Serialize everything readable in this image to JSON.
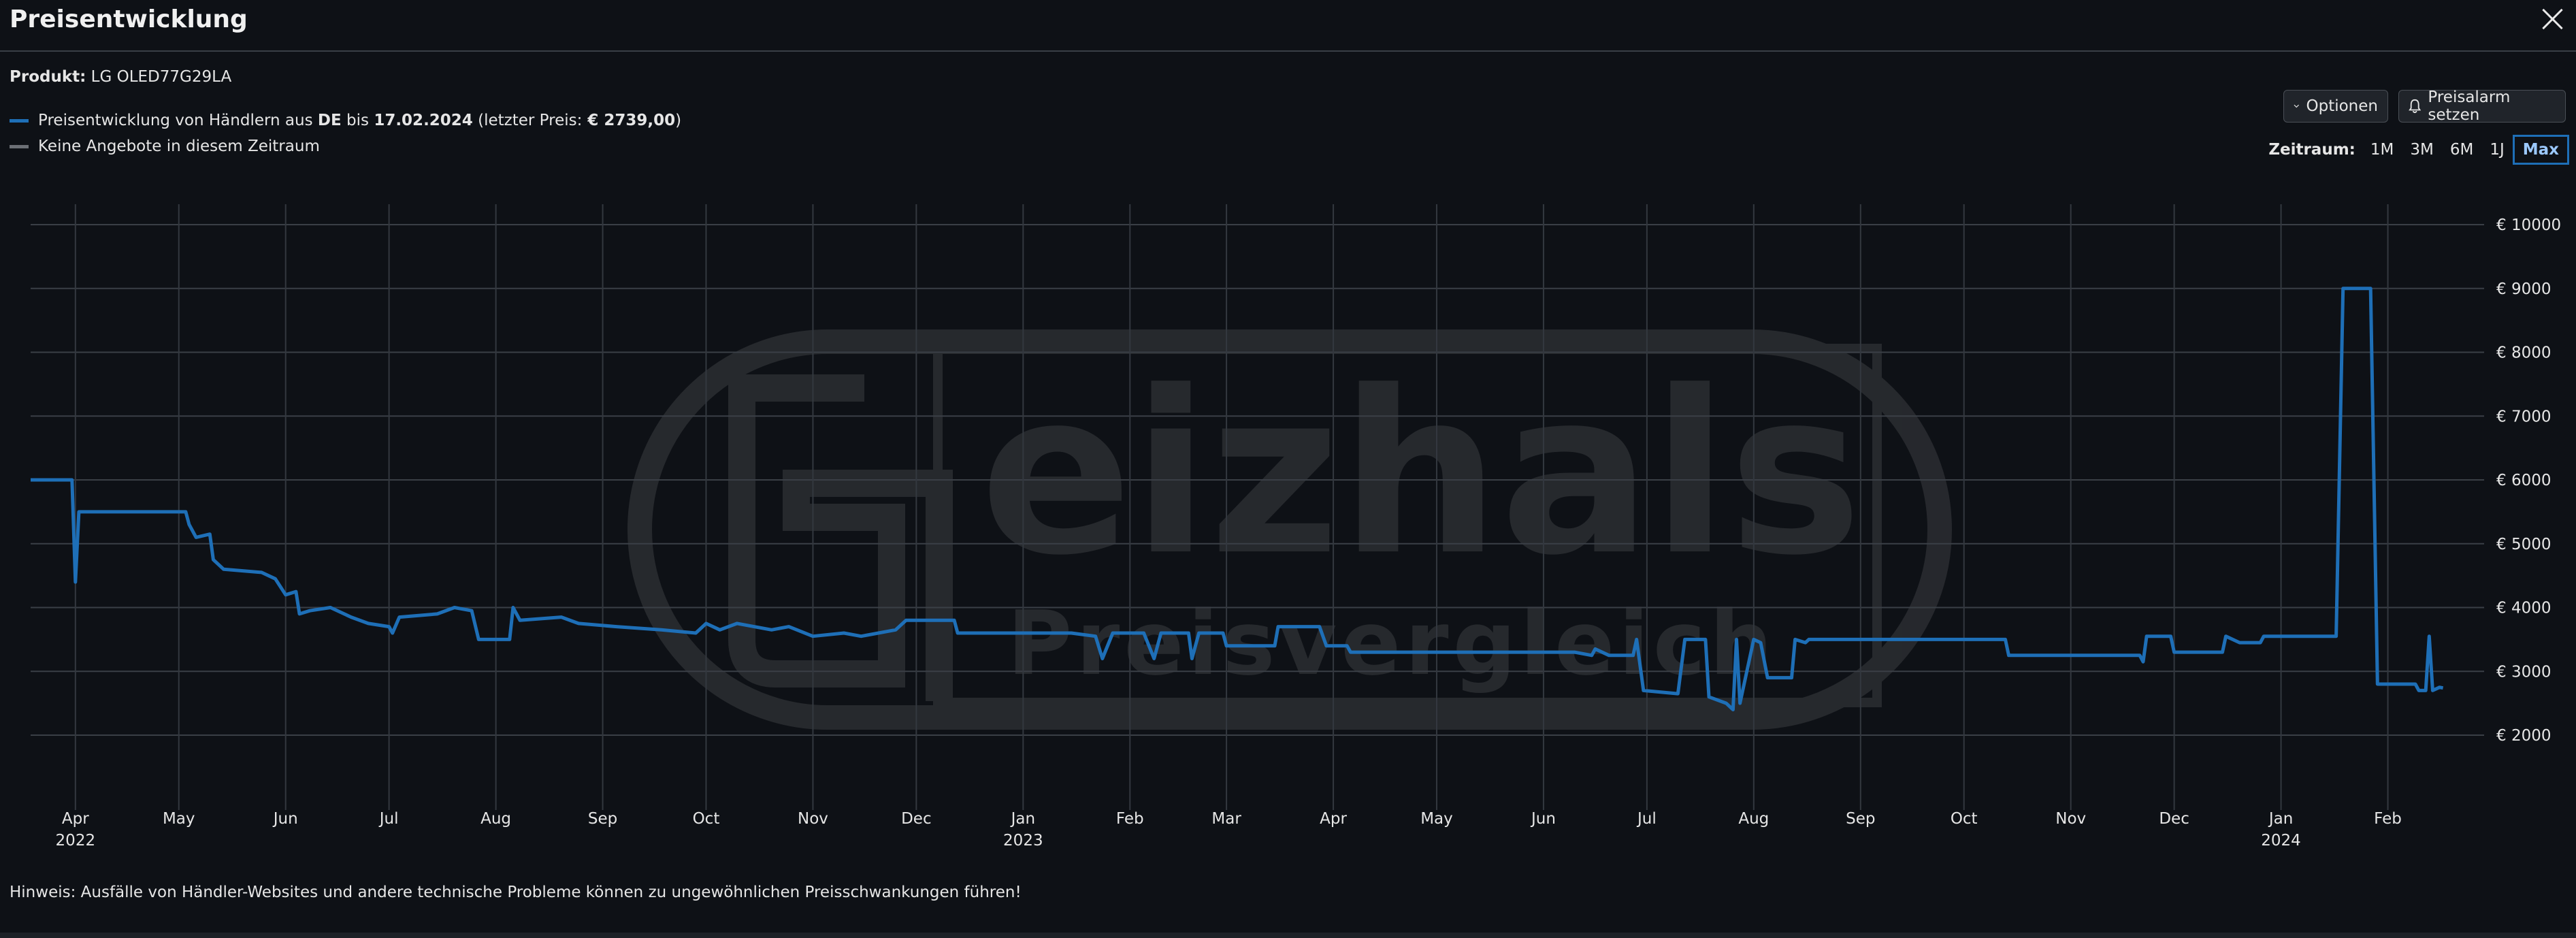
{
  "header": {
    "title": "Preisentwicklung"
  },
  "product": {
    "label": "Produkt:",
    "name": "LG OLED77G29LA"
  },
  "legend": {
    "series_text_1": "Preisentwicklung von Händlern aus",
    "series_country": "DE",
    "series_text_2": "bis",
    "series_date": "17.02.2024",
    "series_text_3": "(letzter Preis:",
    "series_price": "€ 2739,00",
    "series_text_4": ")",
    "no_offers": "Keine Angebote in diesem Zeitraum",
    "series_color": "#1e6fb7",
    "no_offers_color": "#6b6f75"
  },
  "toolbar": {
    "options_label": "Optionen",
    "alarm_label": "Preisalarm setzen"
  },
  "zeitraum": {
    "label": "Zeitraum:",
    "options": [
      "1M",
      "3M",
      "6M",
      "1J",
      "Max"
    ],
    "active": "Max"
  },
  "watermark": {
    "word": "eizhals",
    "sub": "Preisvergleich"
  },
  "hint": "Hinweis: Ausfälle von Händler-Websites und andere technische Probleme können zu ungewöhnlichen Preisschwankungen führen!",
  "chart_data": {
    "type": "line",
    "y_ticks": [
      "€ 10000",
      "€ 9000",
      "€ 8000",
      "€ 7000",
      "€ 6000",
      "€ 5000",
      "€ 4000",
      "€ 3000",
      "€ 2000"
    ],
    "y_values": [
      10000,
      9000,
      8000,
      7000,
      6000,
      5000,
      4000,
      3000,
      2000
    ],
    "ylim": [
      1100,
      10300
    ],
    "x_range": [
      "2022-03-19",
      "2024-02-24"
    ],
    "x_ticks": [
      {
        "label": "Apr",
        "year": "2022",
        "date": "2022-04-01"
      },
      {
        "label": "May",
        "year": "",
        "date": "2022-05-01"
      },
      {
        "label": "Jun",
        "year": "",
        "date": "2022-06-01"
      },
      {
        "label": "Jul",
        "year": "",
        "date": "2022-07-01"
      },
      {
        "label": "Aug",
        "year": "",
        "date": "2022-08-01"
      },
      {
        "label": "Sep",
        "year": "",
        "date": "2022-09-01"
      },
      {
        "label": "Oct",
        "year": "",
        "date": "2022-10-01"
      },
      {
        "label": "Nov",
        "year": "",
        "date": "2022-11-01"
      },
      {
        "label": "Dec",
        "year": "",
        "date": "2022-12-01"
      },
      {
        "label": "Jan",
        "year": "2023",
        "date": "2023-01-01"
      },
      {
        "label": "Feb",
        "year": "",
        "date": "2023-02-01"
      },
      {
        "label": "Mar",
        "year": "",
        "date": "2023-03-01"
      },
      {
        "label": "Apr",
        "year": "",
        "date": "2023-04-01"
      },
      {
        "label": "May",
        "year": "",
        "date": "2023-05-01"
      },
      {
        "label": "Jun",
        "year": "",
        "date": "2023-06-01"
      },
      {
        "label": "Jul",
        "year": "",
        "date": "2023-07-01"
      },
      {
        "label": "Aug",
        "year": "",
        "date": "2023-08-01"
      },
      {
        "label": "Sep",
        "year": "",
        "date": "2023-09-01"
      },
      {
        "label": "Oct",
        "year": "",
        "date": "2023-10-01"
      },
      {
        "label": "Nov",
        "year": "",
        "date": "2023-11-01"
      },
      {
        "label": "Dec",
        "year": "",
        "date": "2023-12-01"
      },
      {
        "label": "Jan",
        "year": "2024",
        "date": "2024-01-01"
      },
      {
        "label": "Feb",
        "year": "",
        "date": "2024-02-01"
      }
    ],
    "grid": true,
    "series": [
      {
        "points": [
          [
            "2022-03-19",
            6000
          ],
          [
            "2022-03-31",
            6000
          ],
          [
            "2022-04-01",
            4400
          ],
          [
            "2022-04-02",
            5500
          ],
          [
            "2022-05-03",
            5500
          ],
          [
            "2022-05-04",
            5300
          ],
          [
            "2022-05-06",
            5100
          ],
          [
            "2022-05-10",
            5150
          ],
          [
            "2022-05-11",
            4750
          ],
          [
            "2022-05-14",
            4600
          ],
          [
            "2022-05-25",
            4550
          ],
          [
            "2022-05-29",
            4450
          ],
          [
            "2022-06-01",
            4200
          ],
          [
            "2022-06-04",
            4250
          ],
          [
            "2022-06-05",
            3900
          ],
          [
            "2022-06-08",
            3950
          ],
          [
            "2022-06-14",
            4000
          ],
          [
            "2022-06-20",
            3850
          ],
          [
            "2022-06-25",
            3750
          ],
          [
            "2022-07-01",
            3700
          ],
          [
            "2022-07-02",
            3600
          ],
          [
            "2022-07-04",
            3850
          ],
          [
            "2022-07-15",
            3900
          ],
          [
            "2022-07-20",
            4000
          ],
          [
            "2022-07-25",
            3950
          ],
          [
            "2022-07-27",
            3500
          ],
          [
            "2022-08-05",
            3500
          ],
          [
            "2022-08-06",
            4000
          ],
          [
            "2022-08-08",
            3800
          ],
          [
            "2022-08-20",
            3850
          ],
          [
            "2022-08-25",
            3750
          ],
          [
            "2022-09-05",
            3700
          ],
          [
            "2022-09-18",
            3650
          ],
          [
            "2022-09-28",
            3600
          ],
          [
            "2022-10-01",
            3750
          ],
          [
            "2022-10-05",
            3650
          ],
          [
            "2022-10-10",
            3750
          ],
          [
            "2022-10-20",
            3650
          ],
          [
            "2022-10-25",
            3700
          ],
          [
            "2022-11-01",
            3550
          ],
          [
            "2022-11-10",
            3600
          ],
          [
            "2022-11-15",
            3550
          ],
          [
            "2022-11-25",
            3650
          ],
          [
            "2022-11-28",
            3800
          ],
          [
            "2022-12-12",
            3800
          ],
          [
            "2022-12-13",
            3600
          ],
          [
            "2023-01-15",
            3600
          ],
          [
            "2023-01-22",
            3550
          ],
          [
            "2023-01-24",
            3200
          ],
          [
            "2023-01-27",
            3600
          ],
          [
            "2023-02-05",
            3600
          ],
          [
            "2023-02-08",
            3200
          ],
          [
            "2023-02-10",
            3600
          ],
          [
            "2023-02-18",
            3600
          ],
          [
            "2023-02-19",
            3200
          ],
          [
            "2023-02-21",
            3600
          ],
          [
            "2023-02-28",
            3600
          ],
          [
            "2023-03-01",
            3400
          ],
          [
            "2023-03-15",
            3400
          ],
          [
            "2023-03-16",
            3700
          ],
          [
            "2023-03-28",
            3700
          ],
          [
            "2023-03-30",
            3400
          ],
          [
            "2023-04-05",
            3400
          ],
          [
            "2023-04-06",
            3300
          ],
          [
            "2023-06-10",
            3300
          ],
          [
            "2023-06-15",
            3250
          ],
          [
            "2023-06-16",
            3350
          ],
          [
            "2023-06-20",
            3250
          ],
          [
            "2023-06-27",
            3250
          ],
          [
            "2023-06-28",
            3500
          ],
          [
            "2023-06-30",
            2700
          ],
          [
            "2023-07-10",
            2650
          ],
          [
            "2023-07-12",
            3500
          ],
          [
            "2023-07-18",
            3500
          ],
          [
            "2023-07-19",
            2600
          ],
          [
            "2023-07-24",
            2500
          ],
          [
            "2023-07-26",
            2400
          ],
          [
            "2023-07-27",
            3500
          ],
          [
            "2023-07-28",
            2500
          ],
          [
            "2023-08-01",
            3500
          ],
          [
            "2023-08-03",
            3450
          ],
          [
            "2023-08-05",
            2900
          ],
          [
            "2023-08-12",
            2900
          ],
          [
            "2023-08-13",
            3500
          ],
          [
            "2023-08-16",
            3450
          ],
          [
            "2023-08-17",
            3500
          ],
          [
            "2023-10-13",
            3500
          ],
          [
            "2023-10-14",
            3250
          ],
          [
            "2023-11-21",
            3250
          ],
          [
            "2023-11-22",
            3150
          ],
          [
            "2023-11-23",
            3550
          ],
          [
            "2023-11-30",
            3550
          ],
          [
            "2023-12-01",
            3300
          ],
          [
            "2023-12-15",
            3300
          ],
          [
            "2023-12-16",
            3550
          ],
          [
            "2023-12-20",
            3450
          ],
          [
            "2023-12-26",
            3450
          ],
          [
            "2023-12-27",
            3550
          ],
          [
            "2024-01-17",
            3550
          ],
          [
            "2024-01-19",
            9000
          ],
          [
            "2024-01-27",
            9000
          ],
          [
            "2024-01-29",
            2800
          ],
          [
            "2024-02-09",
            2800
          ],
          [
            "2024-02-10",
            2700
          ],
          [
            "2024-02-12",
            2700
          ],
          [
            "2024-02-13",
            3550
          ],
          [
            "2024-02-14",
            2700
          ],
          [
            "2024-02-16",
            2750
          ],
          [
            "2024-02-17",
            2739
          ]
        ]
      }
    ]
  }
}
